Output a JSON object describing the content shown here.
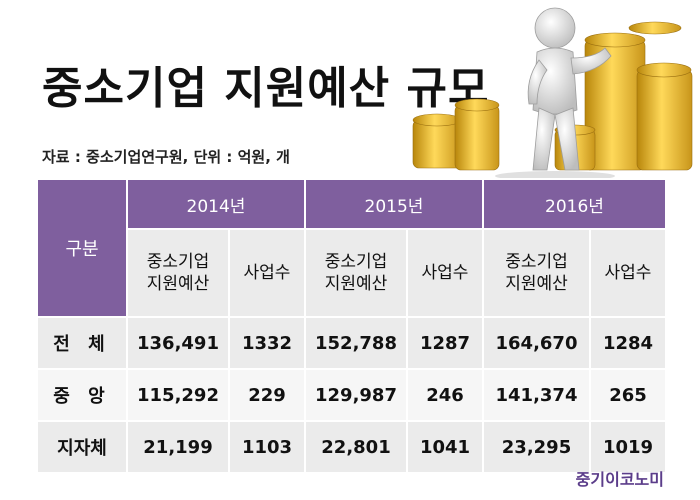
{
  "title": "중소기업 지원예산 규모",
  "source": "자료 : 중소기업연구원, 단위 : 억원, 개",
  "brand": "중기이코노미",
  "colors": {
    "header": "#7f5f9e",
    "cell_light": "#ebebeb",
    "cell_lighter": "#f6f6f6",
    "brand": "#5b3d8a",
    "gold": "#e6b82e"
  },
  "illustration": "figure-with-gold-coins",
  "chart_data": {
    "type": "table",
    "row_header": "구분",
    "years": [
      "2014년",
      "2015년",
      "2016년"
    ],
    "subheaders": [
      "중소기업\n지원예산",
      "사업수",
      "중소기업\n지원예산",
      "사업수",
      "중소기업\n지원예산",
      "사업수"
    ],
    "rows": [
      {
        "label": "전 체",
        "values": [
          "136,491",
          "1332",
          "152,788",
          "1287",
          "164,670",
          "1284"
        ]
      },
      {
        "label": "중 앙",
        "values": [
          "115,292",
          "229",
          "129,987",
          "246",
          "141,374",
          "265"
        ]
      },
      {
        "label": "지자체",
        "values": [
          "21,199",
          "1103",
          "22,801",
          "1041",
          "23,295",
          "1019"
        ]
      }
    ]
  }
}
